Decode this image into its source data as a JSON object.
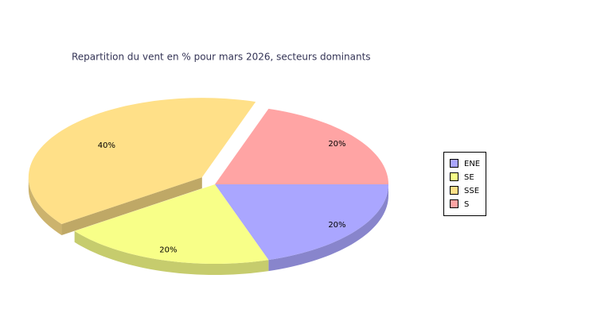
{
  "chart_data": {
    "type": "pie",
    "title": "Repartition du vent en % pour mars 2026, secteurs dominants",
    "categories": [
      "ENE",
      "SE",
      "SSE",
      "S"
    ],
    "values": [
      20,
      20,
      40,
      20
    ],
    "value_labels": [
      "20%",
      "20%",
      "40%",
      "20%"
    ],
    "colors": [
      "#aaa6ff",
      "#f8ff88",
      "#ffe088",
      "#ffa4a4"
    ],
    "exploded": [
      false,
      false,
      true,
      false
    ],
    "legend": "right"
  }
}
